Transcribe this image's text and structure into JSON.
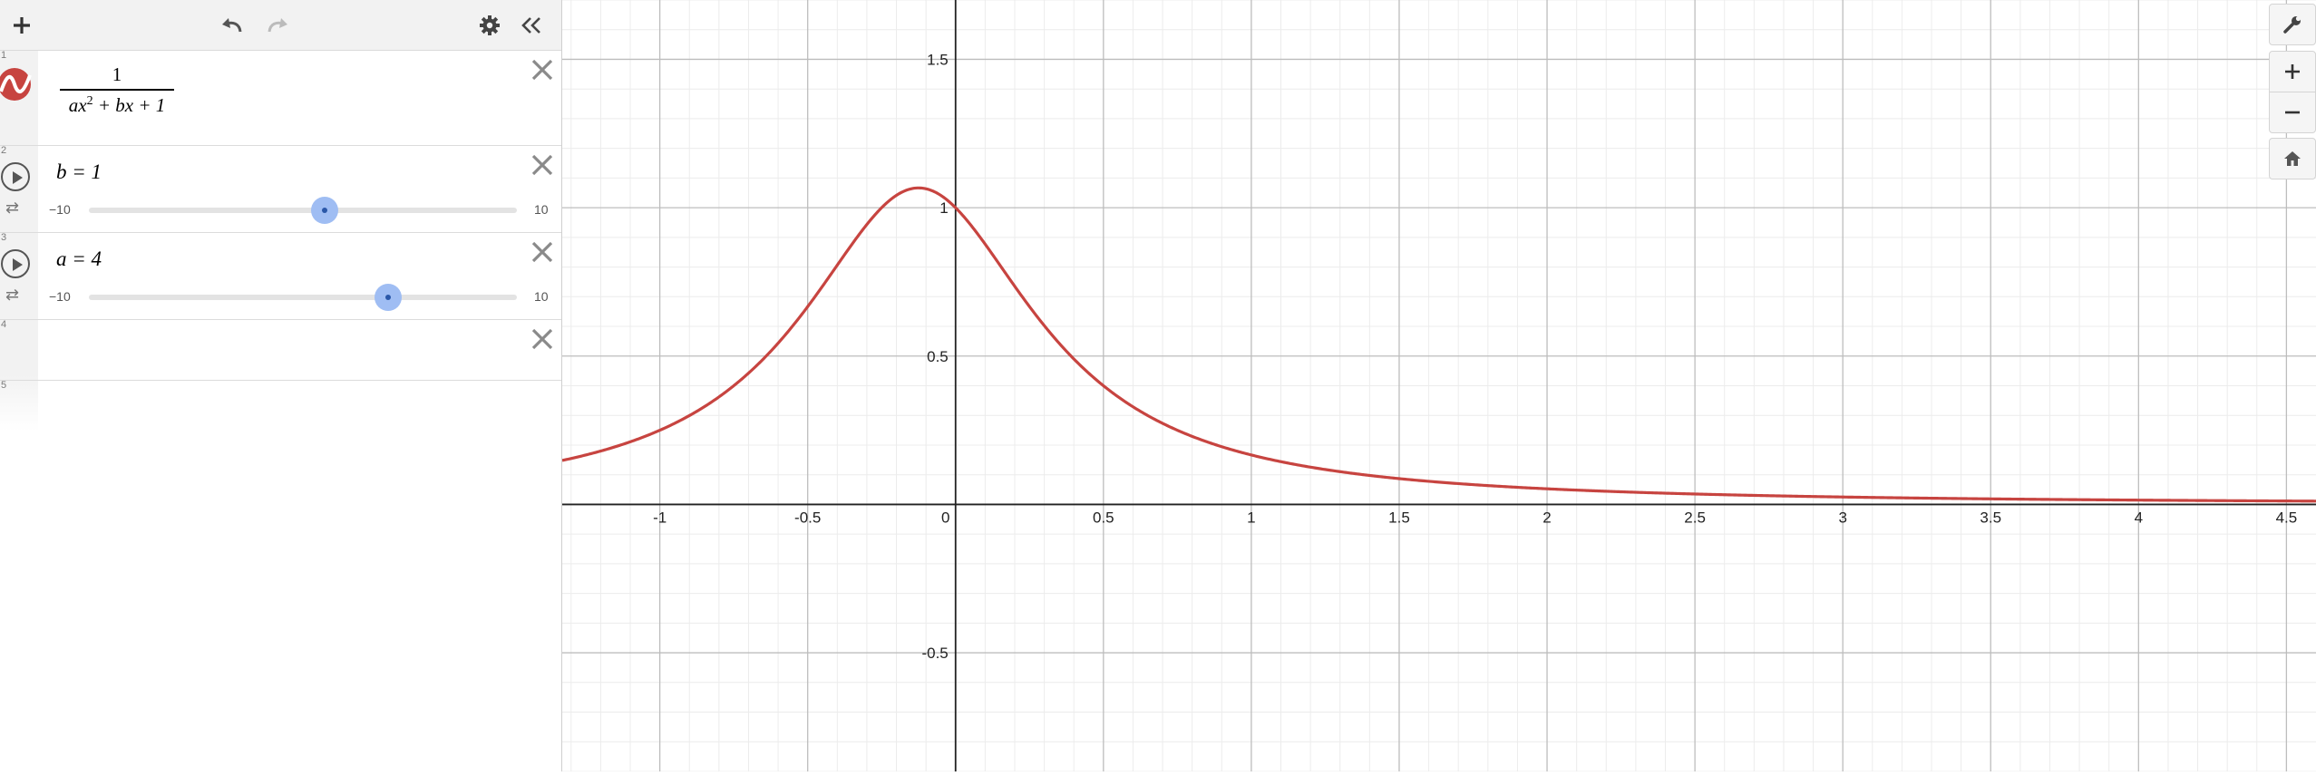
{
  "toolbar": {
    "add_icon": "plus-icon",
    "undo_icon": "undo-icon",
    "redo_icon": "redo-icon",
    "settings_icon": "gear-icon",
    "collapse_icon": "double-chevron-left-icon"
  },
  "expressions": [
    {
      "index": "1",
      "numerator": "1",
      "den_a": "ax",
      "den_exp": "2",
      "den_rest": " + bx + 1",
      "color": "#c74440"
    },
    {
      "index": "2",
      "label": "b = 1",
      "min": "−10",
      "max": "10",
      "value": 1,
      "range": [
        -10,
        10
      ]
    },
    {
      "index": "3",
      "label": "a = 4",
      "min": "−10",
      "max": "10",
      "value": 4,
      "range": [
        -10,
        10
      ]
    },
    {
      "index": "4"
    },
    {
      "index": "5"
    }
  ],
  "graph": {
    "x_ticks": [
      "-1",
      "-0.5",
      "0",
      "0.5",
      "1",
      "1.5",
      "2",
      "2.5",
      "3",
      "3.5",
      "4",
      "4.5"
    ],
    "y_ticks": [
      "1.5",
      "1",
      "0.5",
      "-0.5"
    ],
    "xlim": [
      -1.33,
      4.6
    ],
    "ylim": [
      -0.9,
      1.7
    ],
    "curve_color": "#c74440"
  },
  "right_tools": [
    "wrench-icon",
    "zoom-in-icon",
    "zoom-out-icon",
    "home-icon"
  ]
}
